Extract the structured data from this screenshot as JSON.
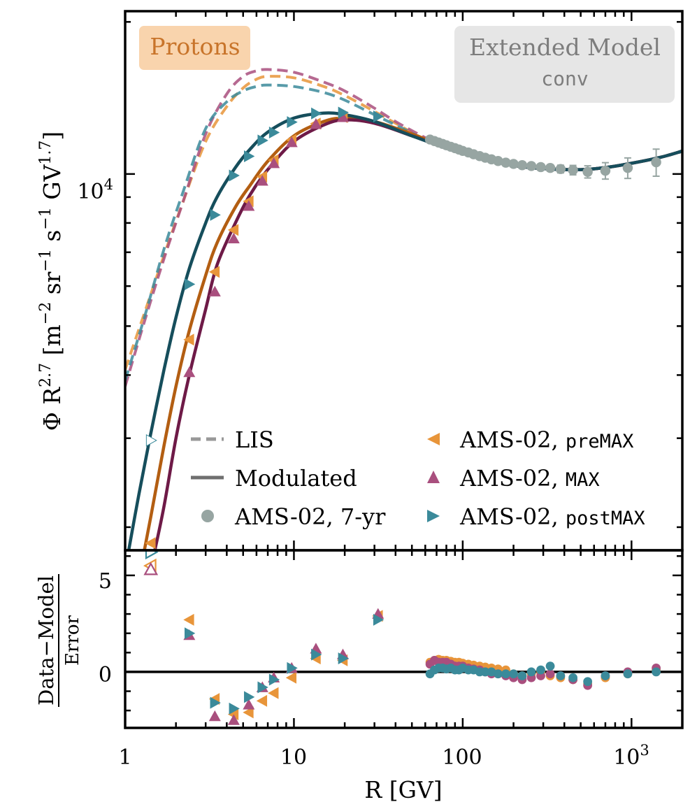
{
  "labels": {
    "species": "Protons",
    "model_line1": "Extended Model",
    "model_line2": "conv",
    "ylabel_top": "Φ R^2.7 [m^-2 sr^-1 s^-1 GV^1.7]",
    "ylabel_bottom_num": "Data−Model",
    "ylabel_bottom_den": "Error",
    "xlabel": "R [GV]"
  },
  "legend": {
    "lis": "LIS",
    "modulated": "Modulated",
    "ams7": "AMS-02, 7-yr",
    "premax_prefix": "AMS-02, ",
    "premax_code": "preMAX",
    "max_prefix": "AMS-02, ",
    "max_code": "MAX",
    "postmax_prefix": "AMS-02, ",
    "postmax_code": "postMAX"
  },
  "ticks": {
    "x": [
      "1",
      "10",
      "100",
      "10^3"
    ],
    "y_top": [
      "10^4"
    ],
    "y_bottom": [
      "0",
      "5"
    ]
  },
  "colors": {
    "premax": "#e8953a",
    "premax_line": "#b35e12",
    "max": "#a94f7e",
    "max_line": "#6e1a47",
    "postmax": "#3b8a9a",
    "postmax_line": "#164e5c",
    "ams7": "#97a5a2",
    "species_box": "#f8cfa4",
    "species_text": "#c8742a",
    "model_box": "#e6e6e6",
    "model_text": "#7d7d7d"
  },
  "chart_data": [
    {
      "type": "line",
      "panel": "spectrum",
      "title": "",
      "xlabel": "R [GV]",
      "ylabel": "Φ R^2.7 [m^-2 sr^-1 s^-1 GV^1.7]",
      "xscale": "log",
      "yscale": "log",
      "xlim": [
        1,
        2000
      ],
      "ylim": [
        1800,
        21000
      ],
      "legend_position": "bottom-right",
      "series": [
        {
          "name": "LIS preMAX",
          "style": "dashed",
          "color_key": "premax",
          "x": [
            1,
            1.3,
            1.7,
            2.2,
            3,
            4,
            5,
            6,
            7,
            10,
            15,
            20,
            30,
            40,
            60,
            80
          ],
          "y": [
            4100,
            5300,
            6900,
            8800,
            11600,
            13600,
            14800,
            15400,
            15600,
            15500,
            14900,
            14300,
            13300,
            12600,
            11700,
            11300
          ]
        },
        {
          "name": "LIS MAX",
          "style": "dashed",
          "color_key": "max",
          "x": [
            1,
            1.3,
            1.7,
            2.2,
            3,
            4,
            5,
            6,
            7,
            10,
            15,
            20,
            30,
            40,
            60,
            80
          ],
          "y": [
            3800,
            5100,
            6800,
            8800,
            12000,
            14400,
            15600,
            16000,
            16100,
            15900,
            15200,
            14600,
            13500,
            12700,
            11800,
            11300
          ]
        },
        {
          "name": "LIS postMAX",
          "style": "dashed",
          "color_key": "postmax",
          "x": [
            1,
            1.3,
            1.7,
            2.2,
            3,
            4,
            5,
            6,
            7,
            10,
            15,
            20,
            30,
            40,
            60,
            80
          ],
          "y": [
            3900,
            5200,
            7100,
            9200,
            12300,
            13900,
            14600,
            14900,
            15000,
            14900,
            14500,
            14000,
            13100,
            12500,
            11700,
            11300
          ]
        },
        {
          "name": "Modulated preMAX",
          "style": "solid",
          "color_key": "premax_line",
          "x": [
            1.3,
            1.42,
            1.7,
            2,
            2.4,
            3,
            3.5,
            4.5,
            5.5,
            7,
            10,
            15,
            20,
            30,
            50,
            80,
            120,
            200,
            300,
            500,
            700,
            1000,
            1500,
            2000
          ],
          "y": [
            1800,
            2100,
            2900,
            3800,
            4900,
            6300,
            7300,
            8600,
            9500,
            10600,
            11900,
            12700,
            12900,
            12700,
            12000,
            11300,
            10800,
            10400,
            10250,
            10200,
            10300,
            10500,
            10800,
            11100
          ]
        },
        {
          "name": "Modulated MAX",
          "style": "solid",
          "color_key": "max_line",
          "x": [
            1.5,
            1.7,
            2,
            2.4,
            3,
            3.5,
            4.5,
            5.5,
            7,
            10,
            15,
            20,
            30,
            50,
            80,
            120,
            200,
            300,
            500,
            700,
            1000,
            1500,
            2000
          ],
          "y": [
            1800,
            2200,
            3000,
            4000,
            5400,
            6600,
            8000,
            9100,
            10200,
            11600,
            12500,
            12800,
            12600,
            11900,
            11250,
            10800,
            10400,
            10250,
            10200,
            10300,
            10500,
            10800,
            11100
          ]
        },
        {
          "name": "Modulated postMAX",
          "style": "solid",
          "color_key": "postmax_line",
          "x": [
            1.05,
            1.2,
            1.4,
            1.7,
            2,
            2.4,
            3,
            3.5,
            4.5,
            5.5,
            7,
            10,
            15,
            20,
            30,
            50,
            80,
            120,
            200,
            300,
            500,
            700,
            1000,
            1500,
            2000
          ],
          "y": [
            1800,
            2300,
            3000,
            4100,
            5200,
            6500,
            8000,
            9000,
            10300,
            11200,
            12100,
            12900,
            13200,
            13100,
            12700,
            11900,
            11250,
            10800,
            10400,
            10250,
            10200,
            10300,
            10500,
            10800,
            11100
          ]
        },
        {
          "name": "AMS-02, preMAX",
          "style": "marker",
          "marker": "triangle-left",
          "color_key": "premax",
          "x": [
            1.42,
            2.4,
            3.4,
            4.4,
            5.4,
            6.5,
            7.6,
            9.7,
            13.5,
            19.5
          ],
          "y": [
            1860,
            4700,
            6400,
            7750,
            8830,
            9880,
            10650,
            11680,
            12580,
            12960
          ]
        },
        {
          "name": "AMS-02, MAX",
          "style": "marker",
          "marker": "triangle-up",
          "color_key": "max",
          "x": [
            2.4,
            3.4,
            4.4,
            5.4,
            6.5,
            7.6,
            9.7,
            13.5,
            19.5
          ],
          "y": [
            4050,
            5850,
            7450,
            8640,
            9690,
            10500,
            11550,
            12550,
            12950
          ]
        },
        {
          "name": "AMS-02, postMAX",
          "style": "marker",
          "marker": "triangle-right",
          "color_key": "postmax",
          "x": [
            2.4,
            3.4,
            4.4,
            5.4,
            6.5,
            7.6,
            9.7,
            13.5,
            19.5,
            31.5
          ],
          "y": [
            6050,
            8300,
            9930,
            10840,
            11650,
            12080,
            12670,
            13180,
            13230,
            13000
          ]
        },
        {
          "name": "AMS-02, 7-yr",
          "style": "marker",
          "marker": "circle",
          "color_key": "ams7",
          "x": [
            64,
            68,
            72,
            76,
            80,
            85,
            90,
            95,
            100,
            108,
            116,
            126,
            136,
            148,
            162,
            180,
            200,
            225,
            255,
            290,
            330,
            380,
            450,
            550,
            700,
            950,
            1400
          ],
          "y": [
            11700,
            11620,
            11540,
            11470,
            11400,
            11320,
            11250,
            11180,
            11110,
            11030,
            10940,
            10850,
            10770,
            10690,
            10610,
            10530,
            10470,
            10410,
            10370,
            10320,
            10280,
            10230,
            10180,
            10100,
            10150,
            10280,
            10550
          ],
          "yerr": [
            150,
            150,
            150,
            150,
            150,
            150,
            150,
            150,
            150,
            150,
            150,
            150,
            150,
            150,
            150,
            150,
            150,
            150,
            150,
            150,
            150,
            180,
            220,
            280,
            380,
            480,
            650
          ]
        }
      ]
    },
    {
      "type": "scatter",
      "panel": "residuals",
      "xlabel": "R [GV]",
      "ylabel": "(Data−Model)/Error",
      "xscale": "log",
      "xlim": [
        1,
        2000
      ],
      "ylim": [
        -2.9,
        6.3
      ],
      "zero_line": true,
      "series": [
        {
          "name": "preMAX",
          "color_key": "premax",
          "marker": "triangle-left",
          "x": [
            1.42,
            2.4,
            3.4,
            4.4,
            5.4,
            6.5,
            7.6,
            9.7,
            13.5,
            19.5,
            31.5
          ],
          "y": [
            5.5,
            2.7,
            -1.4,
            -2.2,
            -2.1,
            -1.5,
            -1.1,
            -0.3,
            0.7,
            0.6,
            2.9
          ]
        },
        {
          "name": "MAX",
          "color_key": "max",
          "marker": "triangle-up",
          "x": [
            1.42,
            2.4,
            3.4,
            4.4,
            5.4,
            6.5,
            7.6,
            9.7,
            13.5,
            19.5,
            31.5
          ],
          "y": [
            5.3,
            1.9,
            -2.3,
            -2.5,
            -1.7,
            -0.8,
            -0.3,
            0.2,
            1.2,
            0.9,
            3.0
          ]
        },
        {
          "name": "postMAX",
          "color_key": "postmax",
          "marker": "triangle-right",
          "x": [
            1.42,
            2.4,
            3.4,
            4.4,
            5.4,
            6.5,
            7.6,
            9.7,
            13.5,
            19.5,
            31.5
          ],
          "y": [
            6.2,
            2.0,
            -1.6,
            -1.9,
            -1.3,
            -0.8,
            -0.4,
            0.2,
            0.9,
            0.7,
            2.7
          ]
        },
        {
          "name": "preMAX 7-yr",
          "color_key": "premax",
          "marker": "circle",
          "x": [
            64,
            68,
            72,
            76,
            80,
            85,
            90,
            95,
            100,
            108,
            116,
            126,
            136,
            148,
            162,
            180,
            200,
            225,
            255,
            290,
            330,
            380,
            450,
            550,
            700,
            950,
            1400
          ],
          "y": [
            0.5,
            0.6,
            0.65,
            0.6,
            0.6,
            0.55,
            0.5,
            0.5,
            0.45,
            0.4,
            0.35,
            0.3,
            0.25,
            0.2,
            0.15,
            0.1,
            -0.1,
            -0.2,
            -0.1,
            0.0,
            -0.2,
            -0.3,
            -0.4,
            -0.6,
            -0.3,
            -0.1,
            0.1
          ]
        },
        {
          "name": "MAX 7-yr",
          "color_key": "max",
          "marker": "circle",
          "x": [
            64,
            68,
            72,
            76,
            80,
            85,
            90,
            95,
            100,
            108,
            116,
            126,
            136,
            148,
            162,
            180,
            200,
            225,
            255,
            290,
            330,
            380,
            450,
            550,
            700,
            950,
            1400
          ],
          "y": [
            0.4,
            0.6,
            0.5,
            0.5,
            0.5,
            0.4,
            0.3,
            0.3,
            0.3,
            0.2,
            0.15,
            0.1,
            0.0,
            -0.1,
            -0.1,
            -0.2,
            -0.3,
            -0.4,
            -0.3,
            -0.2,
            -0.1,
            -0.2,
            -0.4,
            -0.7,
            -0.2,
            0.0,
            0.2
          ]
        },
        {
          "name": "postMAX 7-yr",
          "color_key": "postmax",
          "marker": "circle",
          "x": [
            64,
            68,
            72,
            76,
            80,
            85,
            90,
            95,
            100,
            108,
            116,
            126,
            136,
            148,
            162,
            180,
            200,
            225,
            255,
            290,
            330,
            380,
            450,
            550,
            700,
            950,
            1400
          ],
          "y": [
            -0.1,
            0.1,
            0.2,
            0.2,
            0.15,
            0.2,
            0.1,
            0.1,
            0.2,
            0.1,
            0.1,
            0.0,
            0.0,
            0.0,
            -0.1,
            -0.1,
            -0.1,
            -0.2,
            0.0,
            0.1,
            0.3,
            -0.2,
            -0.3,
            -0.5,
            -0.2,
            -0.1,
            0.0
          ]
        }
      ]
    }
  ]
}
